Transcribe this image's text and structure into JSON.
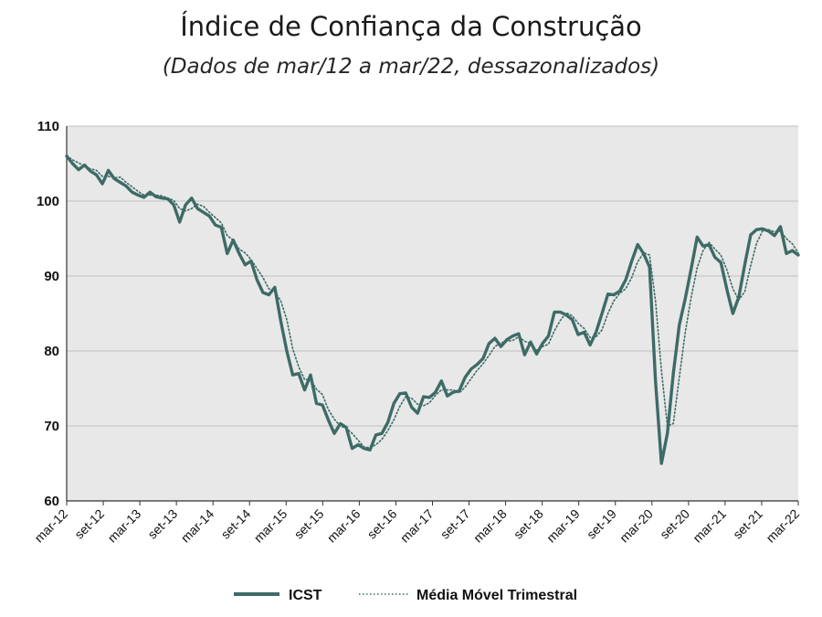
{
  "chart_data": {
    "type": "line",
    "title": "Índice de Confiança da Construção",
    "subtitle": "(Dados de mar/12 a mar/22, dessazonalizados)",
    "xlabel": "",
    "ylabel": "",
    "ylim": [
      60,
      110
    ],
    "yticks": [
      60,
      70,
      80,
      90,
      100,
      110
    ],
    "grid": true,
    "legend": "bottom",
    "x_tick_labels": [
      "mar-12",
      "set-12",
      "mar-13",
      "set-13",
      "mar-14",
      "set-14",
      "mar-15",
      "set-15",
      "mar-16",
      "set-16",
      "mar-17",
      "set-17",
      "mar-18",
      "set-18",
      "mar-19",
      "set-19",
      "mar-20",
      "set-20",
      "mar-21",
      "set-21",
      "mar-22"
    ],
    "x_start": "mar-12",
    "x_end": "mar-22",
    "colors": {
      "icst": "#3d6b66",
      "mm3": "#3d6b66",
      "plot_bg": "#e8e8e8",
      "grid": "#bfbfbf"
    },
    "series": [
      {
        "name": "ICST",
        "style": "solid",
        "values": [
          106.0,
          105.0,
          104.2,
          104.8,
          104.0,
          103.5,
          102.3,
          104.1,
          103.0,
          102.5,
          102.0,
          101.2,
          100.8,
          100.5,
          101.2,
          100.6,
          100.4,
          100.3,
          99.5,
          97.2,
          99.5,
          100.4,
          99.0,
          98.5,
          98.0,
          96.8,
          96.5,
          93.0,
          94.8,
          93.0,
          91.5,
          92.0,
          89.5,
          87.8,
          87.5,
          88.5,
          84.0,
          80.0,
          76.8,
          77.0,
          74.8,
          76.8,
          73.0,
          72.8,
          70.8,
          69.0,
          70.3,
          69.8,
          67.0,
          67.5,
          67.0,
          66.8,
          68.8,
          69.0,
          70.5,
          73.0,
          74.3,
          74.4,
          72.5,
          71.7,
          73.9,
          73.8,
          74.5,
          76.0,
          74.0,
          74.5,
          74.7,
          76.5,
          77.6,
          78.2,
          79.0,
          81.0,
          81.7,
          80.6,
          81.5,
          82.0,
          82.3,
          79.5,
          81.2,
          79.6,
          81.0,
          82.0,
          85.2,
          85.2,
          84.8,
          84.2,
          82.2,
          82.5,
          80.8,
          82.5,
          85.0,
          87.6,
          87.5,
          88.0,
          89.5,
          92.0,
          94.2,
          93.0,
          91.2,
          76.0,
          65.0,
          69.0,
          77.0,
          83.5,
          87.0,
          91.0,
          95.2,
          94.0,
          94.2,
          92.5,
          91.8,
          88.2,
          85.0,
          87.2,
          91.5,
          95.5,
          96.2,
          96.3,
          96.0,
          95.4,
          96.6,
          93.0,
          93.4,
          92.8
        ]
      },
      {
        "name": "Média Móvel Trimestral",
        "style": "dotted",
        "values": [
          106.0,
          105.5,
          105.1,
          104.7,
          104.3,
          104.1,
          103.3,
          103.3,
          103.1,
          103.2,
          102.5,
          101.9,
          101.3,
          100.8,
          100.8,
          100.8,
          100.7,
          100.4,
          100.1,
          99.0,
          98.7,
          99.0,
          99.6,
          99.3,
          98.5,
          97.8,
          97.1,
          95.4,
          94.8,
          93.6,
          93.1,
          92.2,
          91.0,
          89.8,
          88.3,
          87.9,
          86.7,
          84.2,
          80.3,
          77.9,
          76.2,
          76.2,
          74.9,
          74.2,
          72.2,
          70.9,
          70.0,
          69.7,
          69.0,
          68.1,
          67.2,
          67.1,
          67.5,
          68.2,
          69.4,
          70.8,
          72.6,
          73.9,
          73.7,
          72.9,
          72.7,
          73.1,
          74.1,
          74.8,
          74.8,
          74.8,
          74.4,
          75.2,
          76.3,
          77.4,
          78.3,
          79.4,
          80.6,
          81.1,
          81.3,
          81.4,
          81.9,
          81.3,
          81.0,
          80.1,
          80.6,
          80.9,
          82.7,
          84.1,
          85.1,
          84.7,
          83.7,
          83.0,
          81.8,
          81.9,
          82.8,
          85.0,
          86.7,
          87.7,
          88.3,
          89.8,
          91.9,
          93.1,
          92.8,
          86.7,
          77.4,
          70.0,
          70.3,
          76.5,
          82.5,
          87.2,
          91.1,
          93.4,
          94.5,
          93.6,
          92.8,
          90.8,
          88.3,
          86.8,
          87.9,
          91.4,
          94.4,
          96.0,
          96.2,
          95.9,
          96.0,
          95.0,
          94.3,
          93.1
        ]
      }
    ]
  }
}
